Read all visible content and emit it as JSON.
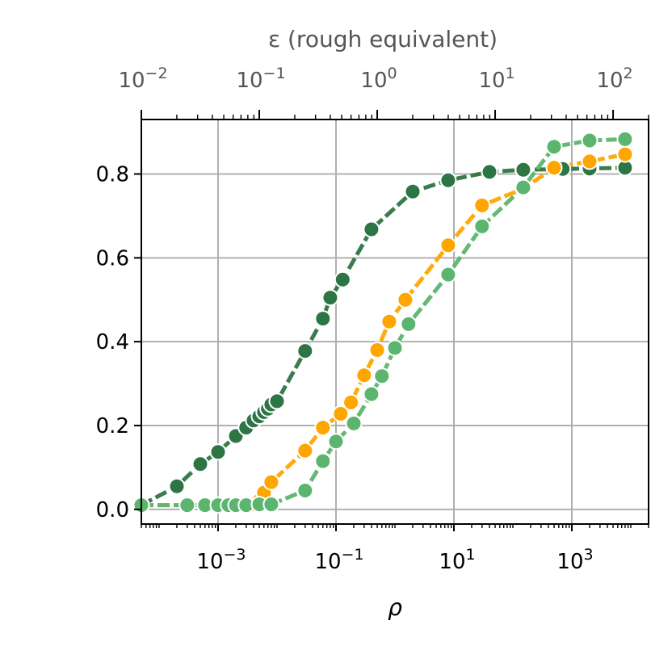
{
  "chart_data": {
    "type": "line",
    "xlabel": "ρ",
    "xscale": "log",
    "xlim": [
      5e-05,
      20000
    ],
    "x_ticks": [
      {
        "value": 0.001,
        "base": "10",
        "exp": "−3"
      },
      {
        "value": 0.1,
        "base": "10",
        "exp": "−1"
      },
      {
        "value": 10,
        "base": "10",
        "exp": "1"
      },
      {
        "value": 1000,
        "base": "10",
        "exp": "3"
      }
    ],
    "ylim": [
      -0.035,
      0.93
    ],
    "y_ticks": [
      {
        "value": 0.0,
        "label": "0.0"
      },
      {
        "value": 0.2,
        "label": "0.2"
      },
      {
        "value": 0.4,
        "label": "0.4"
      },
      {
        "value": 0.6,
        "label": "0.6"
      },
      {
        "value": 0.8,
        "label": "0.8"
      }
    ],
    "top_axis": {
      "xlabel": "ε (rough equivalent)",
      "xscale": "log",
      "xlim": [
        0.01,
        200
      ],
      "ticks": [
        {
          "value": 0.01,
          "base": "10",
          "exp": "−2"
        },
        {
          "value": 0.1,
          "base": "10",
          "exp": "−1"
        },
        {
          "value": 1,
          "base": "10",
          "exp": "0"
        },
        {
          "value": 10,
          "base": "10",
          "exp": "1"
        },
        {
          "value": 100,
          "base": "10",
          "exp": "2"
        }
      ]
    },
    "grid": true,
    "series": [
      {
        "color": "#2e7545",
        "x": [
          5e-05,
          0.0002,
          0.0005,
          0.001,
          0.002,
          0.003,
          0.004,
          0.005,
          0.006,
          0.007,
          0.008,
          0.01,
          0.03,
          0.06,
          0.08,
          0.13,
          0.4,
          2,
          8,
          40,
          150,
          700,
          2000,
          8000
        ],
        "y": [
          0.01,
          0.055,
          0.108,
          0.137,
          0.175,
          0.195,
          0.212,
          0.222,
          0.232,
          0.24,
          0.25,
          0.258,
          0.378,
          0.455,
          0.505,
          0.548,
          0.668,
          0.758,
          0.785,
          0.805,
          0.81,
          0.812,
          0.813,
          0.815
        ]
      },
      {
        "color": "#ffa500",
        "x": [
          5e-05,
          0.0003,
          0.0006,
          0.001,
          0.0015,
          0.002,
          0.003,
          0.004,
          0.005,
          0.006,
          0.008,
          0.03,
          0.06,
          0.12,
          0.18,
          0.3,
          0.5,
          0.8,
          1.5,
          8,
          30,
          150,
          500,
          2000,
          8000
        ],
        "y": [
          0.01,
          0.01,
          0.01,
          0.01,
          0.01,
          0.01,
          0.01,
          0.012,
          0.02,
          0.04,
          0.065,
          0.14,
          0.195,
          0.228,
          0.255,
          0.32,
          0.38,
          0.448,
          0.5,
          0.63,
          0.725,
          0.765,
          0.815,
          0.83,
          0.847
        ]
      },
      {
        "color": "#5cb56e",
        "x": [
          5e-05,
          0.0003,
          0.0006,
          0.001,
          0.0015,
          0.002,
          0.003,
          0.005,
          0.008,
          0.03,
          0.06,
          0.1,
          0.2,
          0.4,
          0.6,
          1,
          1.7,
          8,
          30,
          150,
          500,
          2000,
          8000
        ],
        "y": [
          0.01,
          0.01,
          0.01,
          0.01,
          0.01,
          0.01,
          0.01,
          0.012,
          0.012,
          0.045,
          0.115,
          0.162,
          0.205,
          0.275,
          0.318,
          0.385,
          0.442,
          0.56,
          0.675,
          0.768,
          0.865,
          0.88,
          0.883
        ]
      }
    ]
  }
}
